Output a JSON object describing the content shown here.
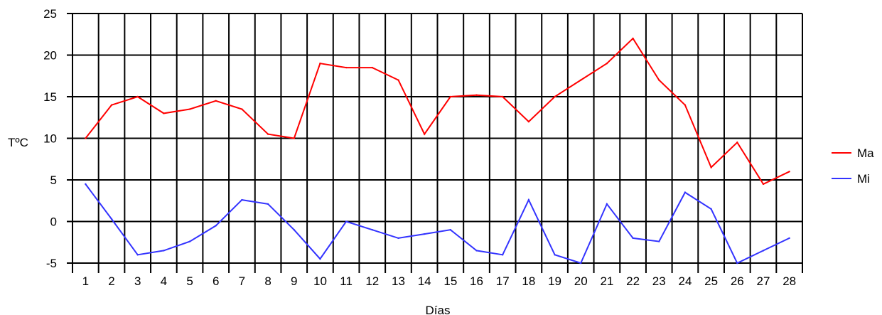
{
  "chart_data": {
    "type": "line",
    "title": "",
    "xlabel": "Días",
    "ylabel": "TºC",
    "ylim": [
      -5,
      25
    ],
    "yticks": [
      -5,
      0,
      5,
      10,
      15,
      20,
      25
    ],
    "grid": true,
    "legend_position": "right",
    "categories": [
      "1",
      "2",
      "3",
      "4",
      "5",
      "6",
      "7",
      "8",
      "9",
      "10",
      "11",
      "12",
      "13",
      "14",
      "15",
      "16",
      "17",
      "18",
      "19",
      "20",
      "21",
      "22",
      "23",
      "24",
      "25",
      "26",
      "27",
      "28"
    ],
    "series": [
      {
        "name": "Ma",
        "color": "#ff0000",
        "values": [
          10,
          14,
          15,
          13,
          13.5,
          14.5,
          13.5,
          10.5,
          10,
          19,
          18.5,
          18.5,
          17,
          10.5,
          15,
          15.2,
          15,
          12,
          15,
          17,
          19,
          22,
          17,
          14,
          6.5,
          9.5,
          4.5,
          6
        ]
      },
      {
        "name": "Mi",
        "color": "#3333ff",
        "values": [
          4.5,
          0.3,
          -4,
          -3.5,
          -2.4,
          -0.5,
          2.6,
          2.1,
          -1,
          -4.5,
          0,
          -1,
          -2,
          -1.5,
          -1,
          -3.5,
          -4,
          2.6,
          -4,
          -5,
          2.1,
          -2,
          -2.4,
          3.5,
          1.5,
          -5,
          -3.5,
          -2
        ]
      }
    ]
  }
}
